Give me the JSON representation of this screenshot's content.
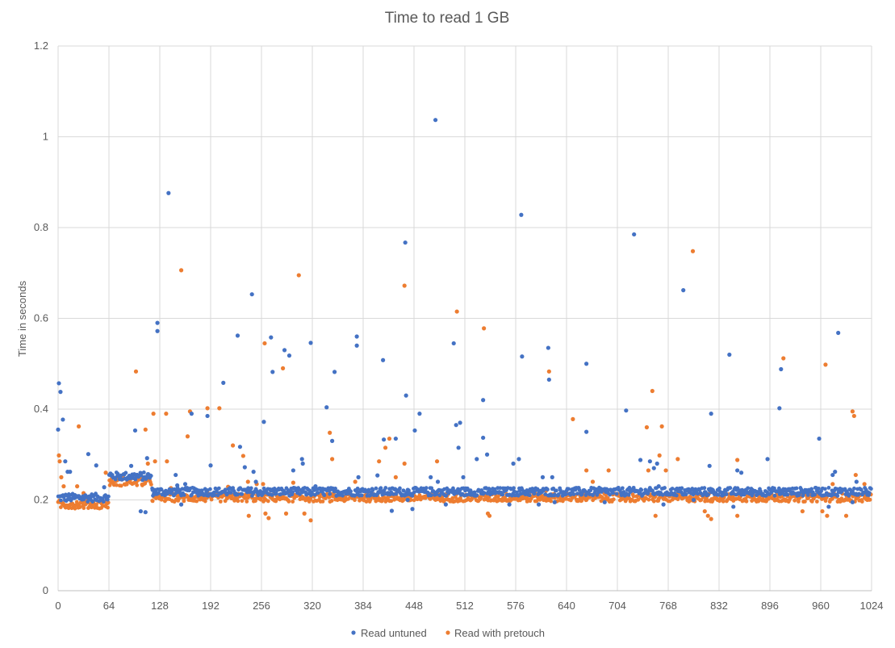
{
  "chart_data": {
    "type": "scatter",
    "title": "Time to read 1 GB",
    "xlabel": "",
    "ylabel": "Time in seconds",
    "xlim": [
      0,
      1024
    ],
    "ylim": [
      0,
      1.2
    ],
    "x_ticks": [
      "0",
      "64",
      "128",
      "192",
      "256",
      "320",
      "384",
      "448",
      "512",
      "576",
      "640",
      "704",
      "768",
      "832",
      "896",
      "960",
      "1024"
    ],
    "y_ticks": [
      "0",
      "0.2",
      "0.4",
      "0.6",
      "0.8",
      "1",
      "1.2"
    ],
    "grid": true,
    "legend_position": "bottom",
    "series": [
      {
        "name": "Read untuned",
        "color": "#4472C4",
        "baseline_segments": [
          {
            "from": 0,
            "to": 8,
            "value": 0.205
          },
          {
            "from": 8,
            "to": 64,
            "value": 0.205
          },
          {
            "from": 64,
            "to": 118,
            "value": 0.252
          },
          {
            "from": 118,
            "to": 1024,
            "value": 0.218
          }
        ],
        "points": [
          [
            0,
            0.355
          ],
          [
            1,
            0.457
          ],
          [
            3,
            0.438
          ],
          [
            6,
            0.377
          ],
          [
            9,
            0.285
          ],
          [
            12,
            0.262
          ],
          [
            15,
            0.262
          ],
          [
            38,
            0.301
          ],
          [
            48,
            0.276
          ],
          [
            58,
            0.228
          ],
          [
            66,
            0.258
          ],
          [
            92,
            0.275
          ],
          [
            97,
            0.353
          ],
          [
            104,
            0.175
          ],
          [
            110,
            0.173
          ],
          [
            112,
            0.292
          ],
          [
            119,
            0.222
          ],
          [
            125,
            0.59
          ],
          [
            125,
            0.572
          ],
          [
            139,
            0.876
          ],
          [
            143,
            0.22
          ],
          [
            148,
            0.255
          ],
          [
            150,
            0.232
          ],
          [
            155,
            0.19
          ],
          [
            160,
            0.235
          ],
          [
            168,
            0.39
          ],
          [
            188,
            0.385
          ],
          [
            192,
            0.276
          ],
          [
            208,
            0.458
          ],
          [
            226,
            0.562
          ],
          [
            229,
            0.317
          ],
          [
            235,
            0.272
          ],
          [
            244,
            0.653
          ],
          [
            246,
            0.262
          ],
          [
            249,
            0.24
          ],
          [
            259,
            0.372
          ],
          [
            268,
            0.558
          ],
          [
            270,
            0.482
          ],
          [
            285,
            0.53
          ],
          [
            291,
            0.518
          ],
          [
            296,
            0.265
          ],
          [
            307,
            0.29
          ],
          [
            308,
            0.28
          ],
          [
            318,
            0.546
          ],
          [
            324,
            0.23
          ],
          [
            338,
            0.404
          ],
          [
            345,
            0.33
          ],
          [
            348,
            0.482
          ],
          [
            376,
            0.56
          ],
          [
            376,
            0.54
          ],
          [
            378,
            0.25
          ],
          [
            402,
            0.254
          ],
          [
            409,
            0.508
          ],
          [
            410,
            0.333
          ],
          [
            420,
            0.176
          ],
          [
            425,
            0.335
          ],
          [
            437,
            0.767
          ],
          [
            438,
            0.43
          ],
          [
            440,
            0.2
          ],
          [
            446,
            0.18
          ],
          [
            449,
            0.353
          ],
          [
            455,
            0.39
          ],
          [
            469,
            0.25
          ],
          [
            475,
            1.037
          ],
          [
            478,
            0.24
          ],
          [
            488,
            0.19
          ],
          [
            498,
            0.545
          ],
          [
            501,
            0.365
          ],
          [
            504,
            0.315
          ],
          [
            506,
            0.37
          ],
          [
            510,
            0.25
          ],
          [
            527,
            0.29
          ],
          [
            535,
            0.42
          ],
          [
            535,
            0.337
          ],
          [
            540,
            0.3
          ],
          [
            550,
            0.215
          ],
          [
            568,
            0.19
          ],
          [
            573,
            0.28
          ],
          [
            580,
            0.29
          ],
          [
            583,
            0.828
          ],
          [
            584,
            0.516
          ],
          [
            605,
            0.19
          ],
          [
            610,
            0.25
          ],
          [
            617,
            0.535
          ],
          [
            618,
            0.465
          ],
          [
            622,
            0.25
          ],
          [
            625,
            0.195
          ],
          [
            665,
            0.5
          ],
          [
            665,
            0.35
          ],
          [
            688,
            0.195
          ],
          [
            715,
            0.397
          ],
          [
            725,
            0.785
          ],
          [
            733,
            0.288
          ],
          [
            745,
            0.285
          ],
          [
            750,
            0.27
          ],
          [
            754,
            0.28
          ],
          [
            756,
            0.23
          ],
          [
            762,
            0.19
          ],
          [
            787,
            0.662
          ],
          [
            800,
            0.2
          ],
          [
            820,
            0.275
          ],
          [
            822,
            0.39
          ],
          [
            845,
            0.52
          ],
          [
            850,
            0.185
          ],
          [
            855,
            0.265
          ],
          [
            860,
            0.26
          ],
          [
            893,
            0.29
          ],
          [
            908,
            0.402
          ],
          [
            910,
            0.488
          ],
          [
            958,
            0.335
          ],
          [
            970,
            0.185
          ],
          [
            975,
            0.255
          ],
          [
            978,
            0.262
          ],
          [
            982,
            0.568
          ],
          [
            1000,
            0.195
          ],
          [
            1005,
            0.24
          ]
        ]
      },
      {
        "name": "Read with pretouch",
        "color": "#ED7D31",
        "baseline_segments": [
          {
            "from": 0,
            "to": 64,
            "value": 0.19
          },
          {
            "from": 64,
            "to": 118,
            "value": 0.24
          },
          {
            "from": 118,
            "to": 1024,
            "value": 0.205
          }
        ],
        "points": [
          [
            1,
            0.298
          ],
          [
            2,
            0.285
          ],
          [
            4,
            0.25
          ],
          [
            7,
            0.23
          ],
          [
            12,
            0.21
          ],
          [
            24,
            0.23
          ],
          [
            26,
            0.362
          ],
          [
            32,
            0.215
          ],
          [
            60,
            0.26
          ],
          [
            98,
            0.483
          ],
          [
            110,
            0.355
          ],
          [
            113,
            0.28
          ],
          [
            120,
            0.39
          ],
          [
            122,
            0.285
          ],
          [
            136,
            0.39
          ],
          [
            137,
            0.285
          ],
          [
            142,
            0.226
          ],
          [
            155,
            0.706
          ],
          [
            163,
            0.34
          ],
          [
            166,
            0.395
          ],
          [
            188,
            0.402
          ],
          [
            203,
            0.402
          ],
          [
            214,
            0.229
          ],
          [
            220,
            0.32
          ],
          [
            233,
            0.297
          ],
          [
            239,
            0.24
          ],
          [
            240,
            0.165
          ],
          [
            250,
            0.235
          ],
          [
            258,
            0.235
          ],
          [
            260,
            0.545
          ],
          [
            261,
            0.17
          ],
          [
            265,
            0.16
          ],
          [
            283,
            0.49
          ],
          [
            287,
            0.17
          ],
          [
            296,
            0.238
          ],
          [
            303,
            0.695
          ],
          [
            310,
            0.17
          ],
          [
            318,
            0.155
          ],
          [
            342,
            0.348
          ],
          [
            345,
            0.29
          ],
          [
            374,
            0.24
          ],
          [
            404,
            0.285
          ],
          [
            412,
            0.315
          ],
          [
            417,
            0.335
          ],
          [
            425,
            0.25
          ],
          [
            436,
            0.672
          ],
          [
            436,
            0.28
          ],
          [
            456,
            0.22
          ],
          [
            477,
            0.285
          ],
          [
            502,
            0.615
          ],
          [
            536,
            0.578
          ],
          [
            541,
            0.17
          ],
          [
            543,
            0.165
          ],
          [
            614,
            0.22
          ],
          [
            618,
            0.483
          ],
          [
            648,
            0.378
          ],
          [
            665,
            0.265
          ],
          [
            673,
            0.24
          ],
          [
            693,
            0.265
          ],
          [
            741,
            0.36
          ],
          [
            743,
            0.265
          ],
          [
            748,
            0.44
          ],
          [
            752,
            0.165
          ],
          [
            757,
            0.298
          ],
          [
            760,
            0.362
          ],
          [
            765,
            0.265
          ],
          [
            780,
            0.29
          ],
          [
            799,
            0.748
          ],
          [
            814,
            0.175
          ],
          [
            818,
            0.165
          ],
          [
            822,
            0.158
          ],
          [
            855,
            0.288
          ],
          [
            855,
            0.165
          ],
          [
            905,
            0.2
          ],
          [
            913,
            0.512
          ],
          [
            937,
            0.175
          ],
          [
            962,
            0.175
          ],
          [
            966,
            0.498
          ],
          [
            968,
            0.165
          ],
          [
            975,
            0.235
          ],
          [
            992,
            0.165
          ],
          [
            1000,
            0.395
          ],
          [
            1002,
            0.385
          ],
          [
            1004,
            0.255
          ],
          [
            1015,
            0.235
          ]
        ]
      }
    ]
  }
}
